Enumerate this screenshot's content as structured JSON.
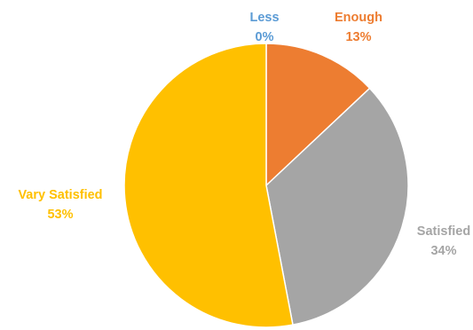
{
  "chart_data": {
    "type": "pie",
    "title": "",
    "start_angle_deg": 0,
    "direction": "clockwise",
    "slices": [
      {
        "label": "Less",
        "value": 0,
        "value_label": "0%",
        "color": "#5B9BD5"
      },
      {
        "label": "Enough",
        "value": 13,
        "value_label": "13%",
        "color": "#ED7D31"
      },
      {
        "label": "Satisfied",
        "value": 34,
        "value_label": "34%",
        "color": "#A5A5A5"
      },
      {
        "label": "Vary Satisfied",
        "value": 53,
        "value_label": "53%",
        "color": "#FFC000"
      }
    ],
    "label_colors": [
      "#5B9BD5",
      "#ED7D31",
      "#A5A5A5",
      "#FFC000"
    ],
    "legend": "none",
    "data_labels": "outside"
  }
}
